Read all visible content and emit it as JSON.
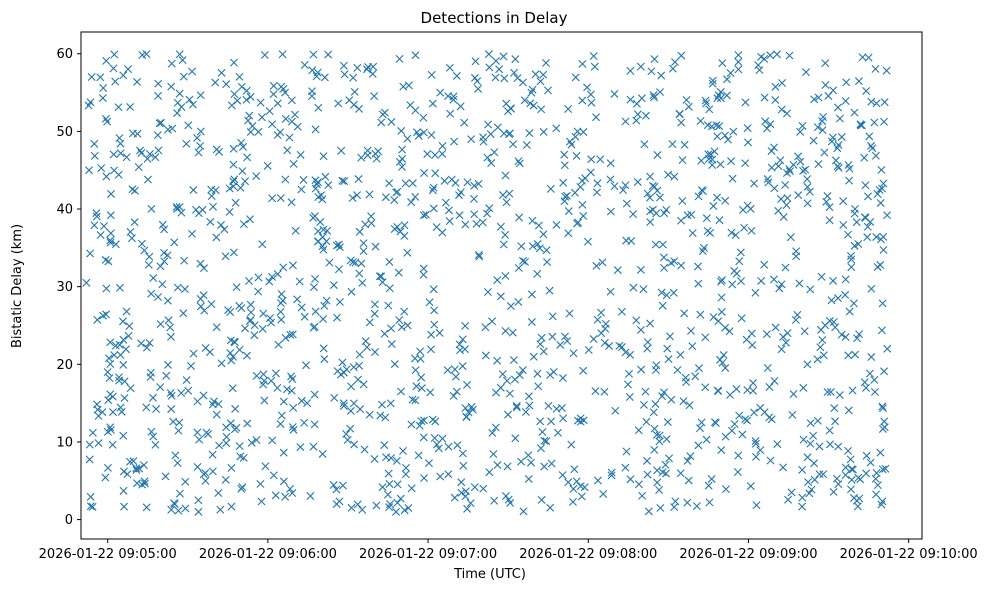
{
  "chart_data": {
    "type": "scatter",
    "title": "Detections in Delay",
    "xlabel": "Time (UTC)",
    "ylabel": "Bistatic Delay (km)",
    "marker": "x",
    "color": "#1f77b4",
    "grid": false,
    "legend": "none",
    "xlim": [
      "2026-01-22 09:04:50",
      "2026-01-22 09:10:05"
    ],
    "ylim": [
      -2.5,
      62.8
    ],
    "xticks": [
      "2026-01-22 09:05:00",
      "2026-01-22 09:06:00",
      "2026-01-22 09:07:00",
      "2026-01-22 09:08:00",
      "2026-01-22 09:09:00",
      "2026-01-22 09:10:00"
    ],
    "yticks": [
      "0",
      "10",
      "20",
      "30",
      "40",
      "50",
      "60"
    ],
    "time_range": [
      "2026-01-22 09:04:52",
      "2026-01-22 09:09:52"
    ],
    "delay_range": [
      1,
      60
    ],
    "num_points": 1500,
    "sample_points": [
      {
        "x": "2026-01-22 09:04:52",
        "y": 30.5
      },
      {
        "x": "2026-01-22 09:04:53",
        "y": 45
      },
      {
        "x": "2026-01-22 09:04:54",
        "y": 57
      },
      {
        "x": "2026-01-22 09:05:00",
        "y": 19
      },
      {
        "x": "2026-01-22 09:05:34",
        "y": 1
      },
      {
        "x": "2026-01-22 09:06:48",
        "y": 1
      },
      {
        "x": "2026-01-22 09:07:14",
        "y": 3
      },
      {
        "x": "2026-01-22 09:08:27",
        "y": 1.5
      },
      {
        "x": "2026-01-22 09:09:45",
        "y": 59.5
      },
      {
        "x": "2026-01-22 09:09:52",
        "y": 22
      }
    ]
  }
}
